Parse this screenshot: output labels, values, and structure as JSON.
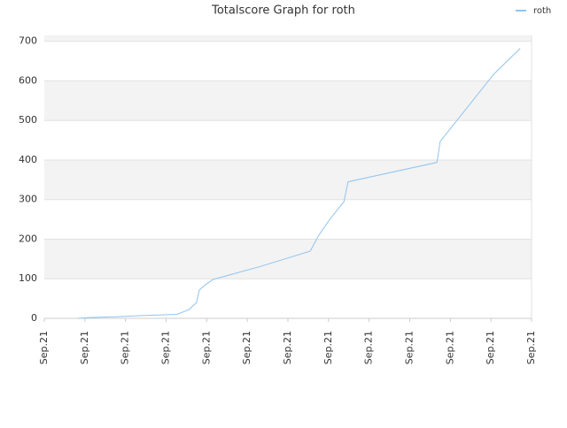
{
  "chart_data": {
    "type": "line",
    "title": "Totalscore Graph for roth",
    "series": [
      {
        "name": "roth",
        "color": "#90c4ee",
        "x": [
          0.83,
          1.09,
          1.75,
          2.4,
          3.27,
          3.56,
          3.75,
          3.82,
          3.97,
          4.15,
          5.35,
          6.55,
          6.76,
          7.03,
          7.38,
          7.48,
          9.67,
          9.75,
          11.07,
          11.72
        ],
        "values": [
          0,
          2,
          4,
          7,
          10,
          22,
          40,
          72,
          85,
          98,
          132,
          170,
          210,
          250,
          295,
          345,
          394,
          447,
          617,
          682
        ]
      }
    ],
    "xlim": [
      0,
      12
    ],
    "xticks": [
      {
        "value": 0,
        "label": "Sep.21"
      },
      {
        "value": 1,
        "label": "Sep.21"
      },
      {
        "value": 2,
        "label": "Sep.21"
      },
      {
        "value": 3,
        "label": "Sep.21"
      },
      {
        "value": 4,
        "label": "Sep.21"
      },
      {
        "value": 5,
        "label": "Sep.21"
      },
      {
        "value": 6,
        "label": "Sep.21"
      },
      {
        "value": 7,
        "label": "Sep.21"
      },
      {
        "value": 8,
        "label": "Sep.21"
      },
      {
        "value": 9,
        "label": "Sep.21"
      },
      {
        "value": 10,
        "label": "Sep.21"
      },
      {
        "value": 11,
        "label": "Sep.21"
      },
      {
        "value": 12,
        "label": "Sep.21"
      }
    ],
    "ylim": [
      0,
      715
    ],
    "yticks": [
      0,
      100,
      200,
      300,
      400,
      500,
      600,
      700
    ],
    "grid": true,
    "legend": "top-right"
  }
}
